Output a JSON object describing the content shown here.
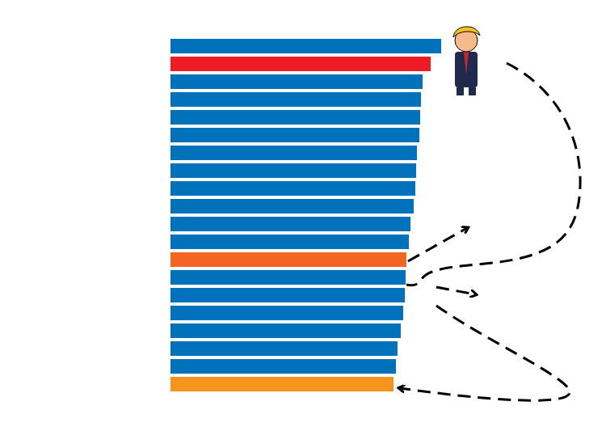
{
  "chart_data": {
    "type": "bar",
    "orientation": "horizontal",
    "categories": [
      null,
      null,
      null,
      null,
      null,
      null,
      null,
      null,
      null,
      null,
      null,
      null,
      null,
      null,
      null,
      null,
      null,
      null,
      null,
      null
    ],
    "values": [
      335,
      322,
      312,
      310,
      309,
      308,
      305,
      304,
      303,
      301,
      297,
      295,
      292,
      291,
      290,
      288,
      285,
      281,
      279,
      276
    ],
    "colors": [
      "#0072bc",
      "#ed1c24",
      "#0072bc",
      "#0072bc",
      "#0072bc",
      "#0072bc",
      "#0072bc",
      "#0072bc",
      "#0072bc",
      "#0072bc",
      "#0072bc",
      "#0072bc",
      "#f26522",
      "#0072bc",
      "#0072bc",
      "#0072bc",
      "#0072bc",
      "#0072bc",
      "#0072bc",
      "#f7941d"
    ],
    "xlim": [
      0,
      335
    ],
    "grid": false,
    "tick_labels": false
  }
}
